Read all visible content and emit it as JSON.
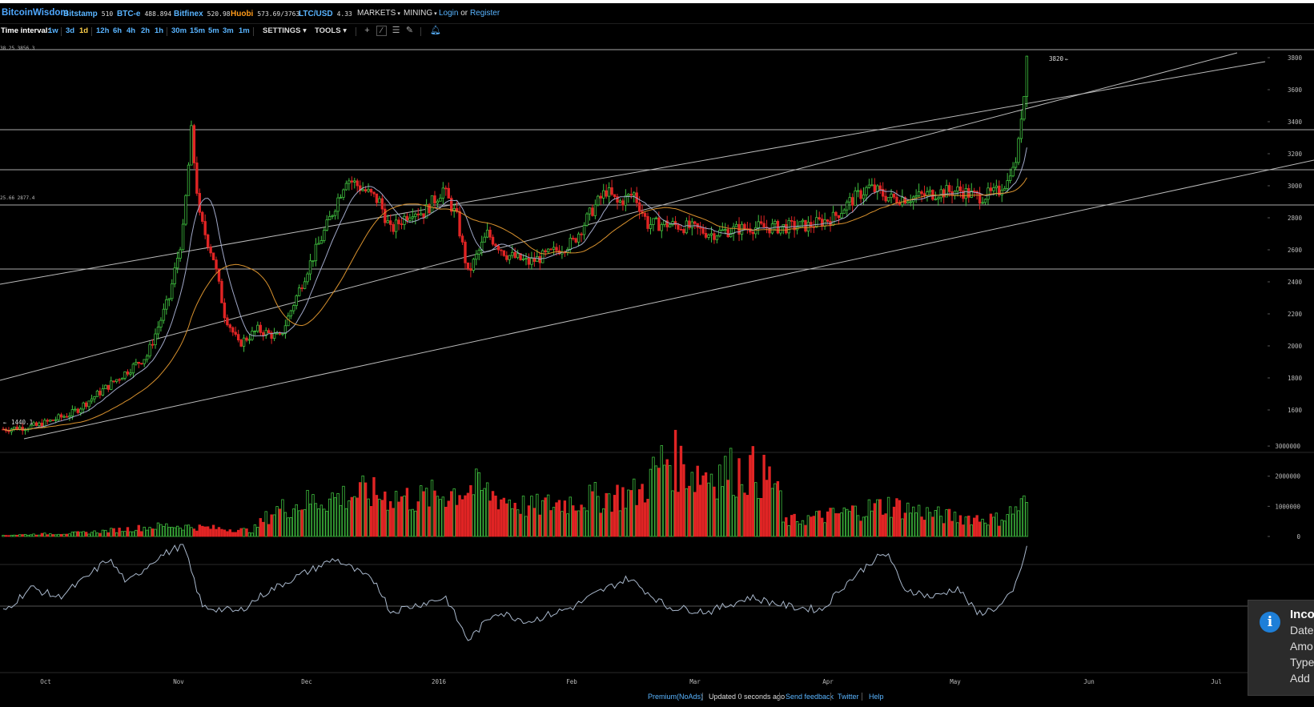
{
  "nav": {
    "brand": "BitcoinWisdom",
    "tickers": [
      {
        "name": "Bitstamp",
        "value": "510",
        "color": "blue"
      },
      {
        "name": "BTC-e",
        "value": "488.894",
        "color": "blue"
      },
      {
        "name": "Bitfinex",
        "value": "520.98",
        "color": "blue"
      },
      {
        "name": "Huobi",
        "value": "573.69/3763",
        "color": "orange"
      },
      {
        "name": "LTC/USD",
        "value": "4.33",
        "color": "blue"
      }
    ],
    "markets_label": "MARKETS",
    "mining_label": "MINING",
    "login_label": "Login",
    "or_label": "or",
    "register_label": "Register"
  },
  "toolbar": {
    "time_interval_label": "Time interval:",
    "intervals": [
      "1w",
      "3d",
      "1d",
      "12h",
      "6h",
      "4h",
      "2h",
      "1h",
      "30m",
      "15m",
      "5m",
      "3m",
      "1m"
    ],
    "active_interval": "1d",
    "settings_label": "SETTINGS",
    "tools_label": "TOOLS"
  },
  "chart_data": {
    "type": "candlestick",
    "price_axis": {
      "ticks": [
        "1600",
        "1800",
        "2000",
        "2200",
        "2400",
        "2600",
        "2800",
        "3000",
        "3200",
        "3400",
        "3600",
        "3800"
      ],
      "range": [
        1430,
        3870
      ]
    },
    "volume_axis": {
      "ticks": [
        "0",
        "1000000",
        "2000000",
        "3000000"
      ],
      "range": [
        0,
        3400000
      ]
    },
    "x_labels": [
      "Oct",
      "Nov",
      "Dec",
      "2016",
      "Feb",
      "Mar",
      "Apr",
      "May",
      "Jun",
      "Jul"
    ],
    "high_label": "3820",
    "low_label": "1440.1",
    "ref_label_top": "38.25 3856.3",
    "ref_label_mid": "25.66 2877.4",
    "horizontal_lines": [
      3850,
      3350,
      3100,
      2880,
      2480
    ],
    "colors": {
      "up": "#3fbf3f",
      "down": "#e02424",
      "ma_fast": "#a0a8c8",
      "ma_slow": "#d9922e",
      "trendline": "#bbbbbb",
      "indicator": "#a9b8cc"
    },
    "price_keypoints": [
      [
        0,
        1480
      ],
      [
        12,
        1500
      ],
      [
        25,
        1580
      ],
      [
        38,
        1750
      ],
      [
        52,
        1940
      ],
      [
        60,
        2300
      ],
      [
        65,
        2720
      ],
      [
        68,
        3330
      ],
      [
        71,
        2800
      ],
      [
        76,
        2550
      ],
      [
        80,
        2200
      ],
      [
        85,
        2010
      ],
      [
        92,
        2100
      ],
      [
        100,
        2050
      ],
      [
        110,
        2480
      ],
      [
        117,
        2750
      ],
      [
        124,
        3050
      ],
      [
        130,
        2980
      ],
      [
        136,
        2900
      ],
      [
        140,
        2720
      ],
      [
        148,
        2850
      ],
      [
        152,
        2830
      ],
      [
        159,
        2980
      ],
      [
        164,
        2800
      ],
      [
        168,
        2450
      ],
      [
        175,
        2700
      ],
      [
        182,
        2570
      ],
      [
        190,
        2520
      ],
      [
        198,
        2580
      ],
      [
        206,
        2650
      ],
      [
        213,
        2850
      ],
      [
        218,
        2970
      ],
      [
        222,
        2890
      ],
      [
        228,
        2950
      ],
      [
        233,
        2760
      ],
      [
        240,
        2760
      ],
      [
        248,
        2740
      ],
      [
        256,
        2700
      ],
      [
        262,
        2720
      ],
      [
        270,
        2740
      ],
      [
        280,
        2740
      ],
      [
        291,
        2750
      ],
      [
        300,
        2800
      ],
      [
        306,
        2900
      ],
      [
        313,
        2990
      ],
      [
        321,
        2920
      ],
      [
        330,
        2930
      ],
      [
        338,
        2960
      ],
      [
        346,
        2970
      ],
      [
        352,
        2930
      ],
      [
        358,
        2950
      ],
      [
        362,
        2990
      ],
      [
        366,
        3150
      ],
      [
        369,
        3560
      ],
      [
        370,
        3820
      ]
    ],
    "volume_keypoints": [
      [
        0,
        40000
      ],
      [
        30,
        130000
      ],
      [
        60,
        380000
      ],
      [
        90,
        200000
      ],
      [
        98,
        900000
      ],
      [
        110,
        1200000
      ],
      [
        130,
        1500000
      ],
      [
        150,
        1300000
      ],
      [
        170,
        1700000
      ],
      [
        190,
        1000000
      ],
      [
        210,
        1300000
      ],
      [
        230,
        1500000
      ],
      [
        240,
        2800000
      ],
      [
        250,
        2200000
      ],
      [
        270,
        2300000
      ],
      [
        280,
        1800000
      ],
      [
        282,
        500000
      ],
      [
        300,
        750000
      ],
      [
        320,
        1100000
      ],
      [
        340,
        700000
      ],
      [
        360,
        600000
      ],
      [
        370,
        1200000
      ]
    ],
    "indicator_keypoints": [
      [
        0,
        0.3
      ],
      [
        10,
        0.55
      ],
      [
        20,
        0.45
      ],
      [
        30,
        0.65
      ],
      [
        38,
        0.85
      ],
      [
        45,
        0.6
      ],
      [
        55,
        0.85
      ],
      [
        65,
        1.0
      ],
      [
        72,
        0.35
      ],
      [
        85,
        0.3
      ],
      [
        95,
        0.5
      ],
      [
        105,
        0.65
      ],
      [
        120,
        0.85
      ],
      [
        135,
        0.6
      ],
      [
        140,
        0.3
      ],
      [
        160,
        0.45
      ],
      [
        168,
        0.0
      ],
      [
        178,
        0.3
      ],
      [
        190,
        0.2
      ],
      [
        206,
        0.35
      ],
      [
        215,
        0.5
      ],
      [
        226,
        0.65
      ],
      [
        240,
        0.35
      ],
      [
        255,
        0.3
      ],
      [
        270,
        0.45
      ],
      [
        285,
        0.35
      ],
      [
        296,
        0.32
      ],
      [
        303,
        0.55
      ],
      [
        315,
        0.85
      ],
      [
        320,
        0.9
      ],
      [
        325,
        0.55
      ],
      [
        336,
        0.45
      ],
      [
        345,
        0.55
      ],
      [
        352,
        0.28
      ],
      [
        360,
        0.35
      ],
      [
        365,
        0.5
      ],
      [
        370,
        0.95
      ]
    ]
  },
  "footer": {
    "premium_label": "Premium(NoAds)",
    "updated_label": "Updated 0 seconds ago",
    "feedback_label": "Send feedback",
    "twitter_label": "Twitter",
    "help_label": "Help"
  },
  "toast": {
    "title": "Inco",
    "lines": [
      "Date",
      "Amo",
      "Type",
      "Add"
    ]
  }
}
